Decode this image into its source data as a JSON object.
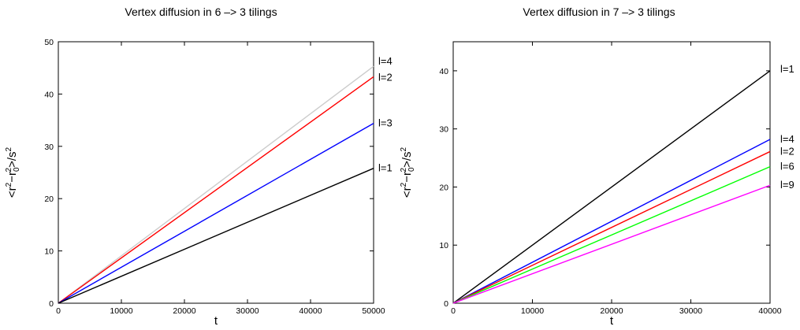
{
  "chart_data": [
    {
      "type": "line",
      "title": "Vertex diffusion in 6 –> 3 tilings",
      "xlabel": "t",
      "ylabel_parts": [
        "<r",
        "2",
        "−r",
        "0",
        "2",
        ">/s",
        "2"
      ],
      "xlim": [
        0,
        50000
      ],
      "ylim": [
        0,
        50
      ],
      "xticks": [
        0,
        10000,
        20000,
        30000,
        40000,
        50000
      ],
      "yticks": [
        0,
        10,
        20,
        30,
        40,
        50
      ],
      "grid": false,
      "legend": "inline-right",
      "series": [
        {
          "name": "l=4",
          "color": "#cccccc",
          "x": [
            0,
            50000
          ],
          "y": [
            0,
            45.3
          ]
        },
        {
          "name": "l=2",
          "color": "#ff0000",
          "x": [
            0,
            50000
          ],
          "y": [
            0,
            43.3
          ]
        },
        {
          "name": "l=3",
          "color": "#0000ff",
          "x": [
            0,
            50000
          ],
          "y": [
            0,
            34.4
          ]
        },
        {
          "name": "l=1",
          "color": "#000000",
          "x": [
            0,
            50000
          ],
          "y": [
            0,
            25.8
          ]
        }
      ]
    },
    {
      "type": "line",
      "title": "Vertex diffusion in 7 –> 3 tilings",
      "xlabel": "t",
      "ylabel_parts": [
        "<r",
        "2",
        "−r",
        "0",
        "2",
        ">/s",
        "2"
      ],
      "xlim": [
        0,
        40000
      ],
      "ylim": [
        0,
        45
      ],
      "xticks": [
        0,
        10000,
        20000,
        30000,
        40000
      ],
      "yticks": [
        0,
        10,
        20,
        30,
        40
      ],
      "grid": false,
      "legend": "inline-right",
      "series": [
        {
          "name": "l=1",
          "color": "#000000",
          "x": [
            0,
            40000
          ],
          "y": [
            0,
            40.0
          ]
        },
        {
          "name": "l=4",
          "color": "#0000ff",
          "x": [
            0,
            40000
          ],
          "y": [
            0,
            28.2
          ]
        },
        {
          "name": "l=2",
          "color": "#ff0000",
          "x": [
            0,
            40000
          ],
          "y": [
            0,
            26.1
          ]
        },
        {
          "name": "l=6",
          "color": "#00ff00",
          "x": [
            0,
            40000
          ],
          "y": [
            0,
            23.5
          ]
        },
        {
          "name": "l=9",
          "color": "#ff00ff",
          "x": [
            0,
            40000
          ],
          "y": [
            0,
            20.3
          ]
        }
      ]
    }
  ]
}
